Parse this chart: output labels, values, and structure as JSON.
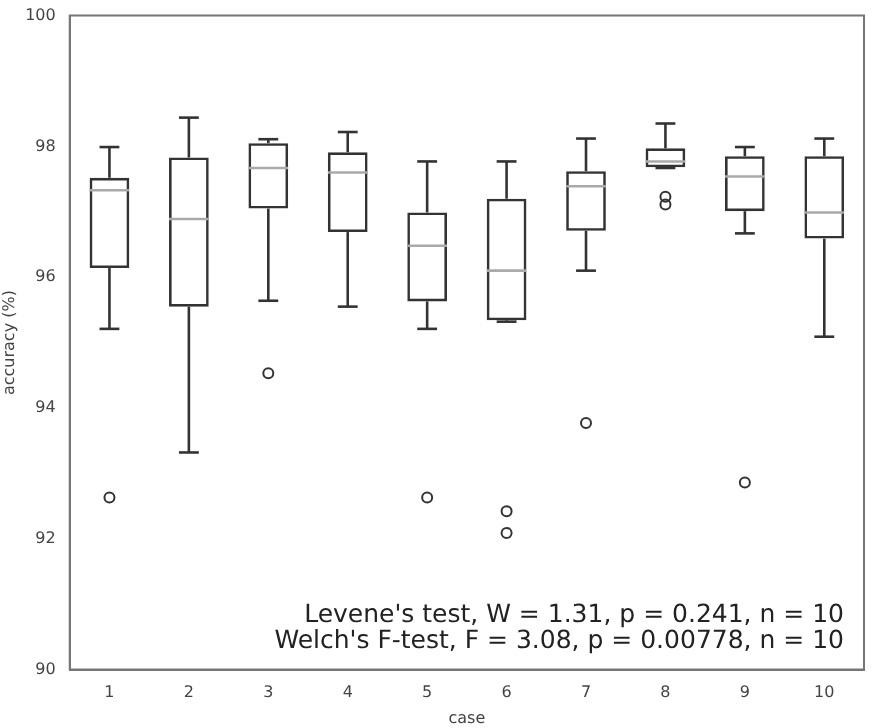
{
  "chart_data": {
    "type": "box",
    "xlabel": "case",
    "ylabel": "accuracy (%)",
    "categories": [
      "1",
      "2",
      "3",
      "4",
      "5",
      "6",
      "7",
      "8",
      "9",
      "10"
    ],
    "boxes": [
      {
        "low": 95.21,
        "q1": 96.14,
        "median": 97.33,
        "q3": 97.52,
        "high": 97.99,
        "outliers": [
          92.63
        ]
      },
      {
        "low": 93.32,
        "q1": 95.55,
        "median": 96.89,
        "q3": 97.83,
        "high": 98.44
      },
      {
        "low": 95.64,
        "q1": 97.05,
        "median": 97.67,
        "q3": 98.05,
        "high": 98.11,
        "outliers": [
          94.53
        ]
      },
      {
        "low": 95.55,
        "q1": 96.69,
        "median": 97.6,
        "q3": 97.91,
        "high": 98.22
      },
      {
        "low": 95.21,
        "q1": 95.63,
        "median": 96.48,
        "q3": 96.99,
        "high": 97.77,
        "outliers": [
          92.63
        ]
      },
      {
        "low": 95.32,
        "q1": 95.34,
        "median": 96.1,
        "q3": 97.2,
        "high": 97.77,
        "outliers": [
          92.42,
          92.09
        ]
      },
      {
        "low": 96.1,
        "q1": 96.71,
        "median": 97.39,
        "q3": 97.62,
        "high": 98.12,
        "outliers": [
          93.77
        ]
      },
      {
        "low": 97.67,
        "q1": 97.68,
        "median": 97.77,
        "q3": 97.97,
        "high": 98.35,
        "outliers": [
          97.23,
          97.11
        ]
      },
      {
        "low": 96.67,
        "q1": 97.01,
        "median": 97.54,
        "q3": 97.85,
        "high": 97.99,
        "outliers": [
          92.86
        ]
      },
      {
        "low": 95.09,
        "q1": 96.59,
        "median": 96.99,
        "q3": 97.85,
        "high": 98.12
      }
    ],
    "ylim": [
      90,
      100
    ],
    "yticks": [
      90,
      92,
      94,
      96,
      98,
      100
    ],
    "annotations": [
      "Levene's test, W = 1.31, p = 0.241, n = 10",
      "Welch's F-test, F = 3.08, p = 0.00778, n = 10"
    ]
  }
}
